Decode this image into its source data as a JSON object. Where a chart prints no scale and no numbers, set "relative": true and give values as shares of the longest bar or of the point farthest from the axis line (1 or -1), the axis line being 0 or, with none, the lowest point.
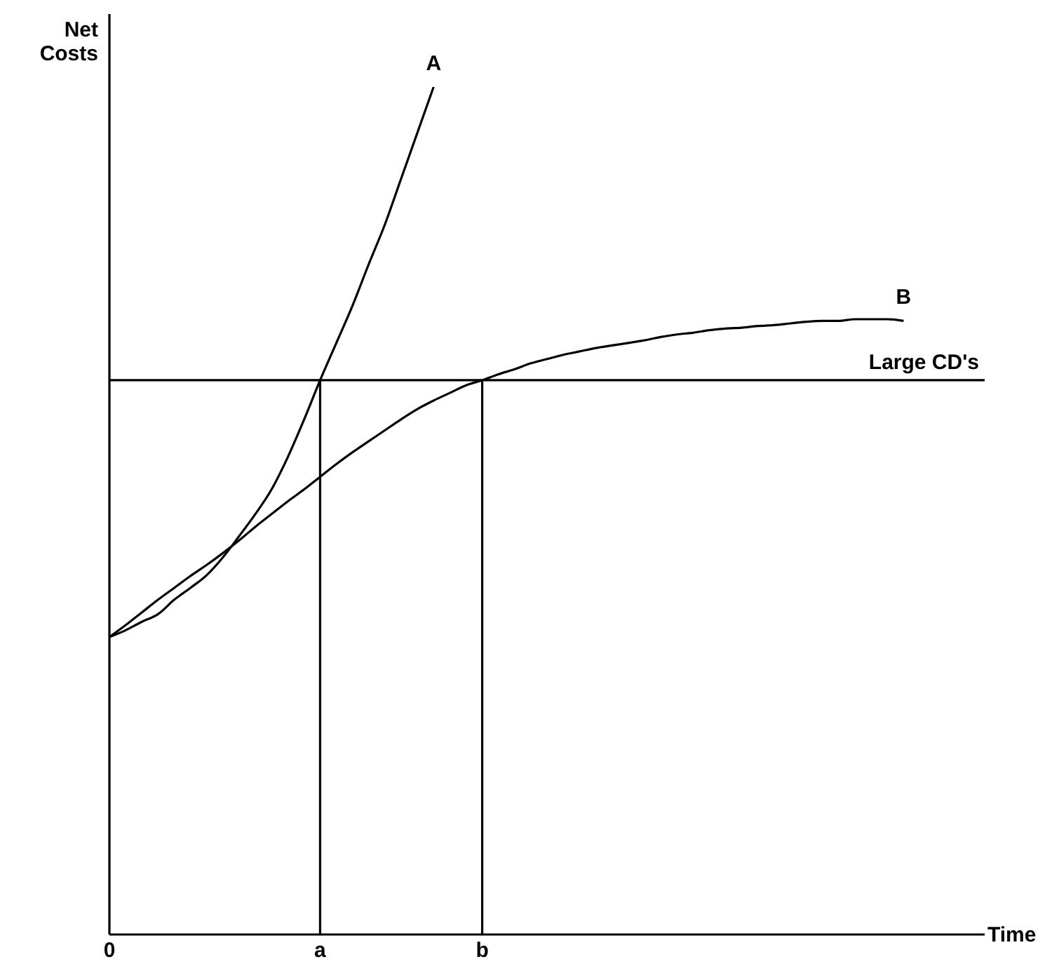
{
  "chart_data": {
    "type": "line",
    "relative": true,
    "xlabel": "Time",
    "ylabel": "Net Costs",
    "categories": [
      "0",
      null,
      null,
      null,
      null,
      null,
      null,
      null,
      null,
      null,
      null,
      null,
      null,
      "a",
      null,
      null,
      null,
      null,
      null,
      null,
      null,
      null,
      null,
      "b",
      null,
      null,
      null,
      null,
      null,
      null,
      null,
      null,
      null,
      null,
      null,
      null,
      null,
      null,
      null,
      null,
      null,
      null,
      null,
      null,
      null,
      null,
      null,
      null,
      null,
      null,
      null,
      null,
      null,
      null,
      null
    ],
    "series": [
      {
        "name": "A",
        "color": "#000000",
        "values": [
          0.351,
          0.359,
          0.369,
          0.378,
          0.395,
          0.409,
          0.424,
          0.445,
          0.47,
          0.496,
          0.525,
          0.563,
          0.607,
          0.654,
          0.698,
          0.742,
          0.791,
          0.838,
          0.892,
          0.946,
          1.0,
          null,
          null,
          null,
          null,
          null,
          null,
          null,
          null,
          null,
          null,
          null,
          null,
          null,
          null,
          null,
          null,
          null,
          null,
          null,
          null,
          null,
          null,
          null,
          null,
          null,
          null,
          null,
          null,
          null,
          null,
          null,
          null,
          null,
          null
        ]
      },
      {
        "name": "B",
        "color": "#000000",
        "values": [
          0.351,
          0.365,
          0.38,
          0.395,
          0.409,
          0.423,
          0.436,
          0.45,
          0.465,
          0.481,
          0.496,
          0.511,
          0.525,
          0.54,
          0.555,
          0.569,
          0.582,
          0.595,
          0.608,
          0.62,
          0.63,
          0.639,
          0.648,
          0.654,
          0.661,
          0.667,
          0.674,
          0.679,
          0.684,
          0.688,
          0.692,
          0.695,
          0.698,
          0.701,
          0.705,
          0.708,
          0.71,
          0.713,
          0.715,
          0.716,
          0.718,
          0.719,
          0.721,
          0.723,
          0.724,
          0.724,
          0.726,
          0.726,
          0.726,
          0.724,
          null,
          null,
          null,
          null,
          null
        ]
      }
    ],
    "ref_lines": [
      {
        "axis": "y",
        "value": 0.654,
        "label": "Large CD's"
      },
      {
        "axis": "x",
        "value": "a"
      },
      {
        "axis": "x",
        "value": "b"
      }
    ],
    "grid": false,
    "legend": false,
    "marker": "none",
    "line_style": "solid"
  }
}
